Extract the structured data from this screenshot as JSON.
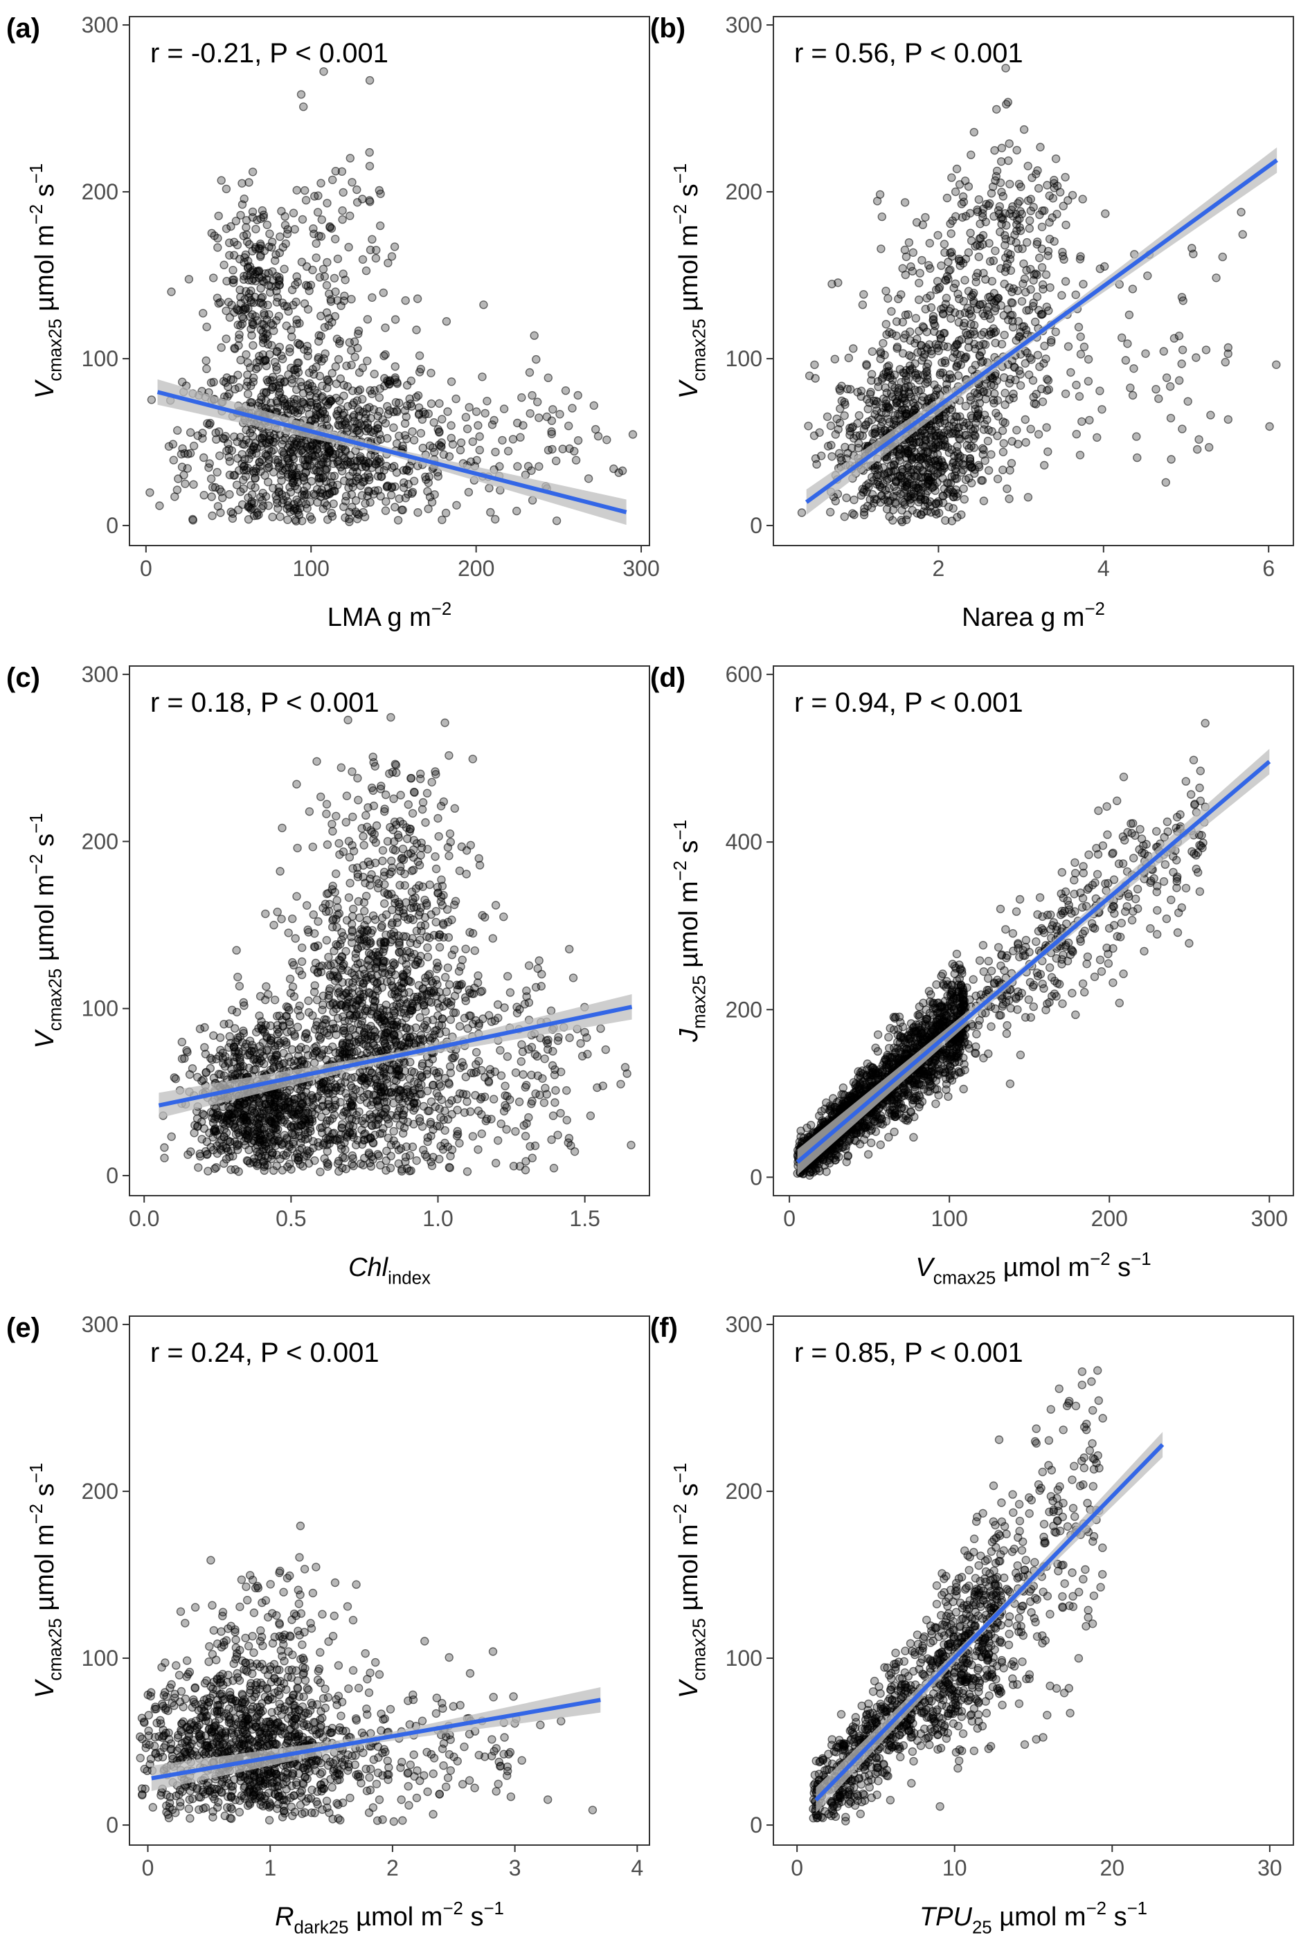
{
  "chart_data": [
    {
      "panel": "(a)",
      "type": "scatter",
      "annotation": "r = -0.21, P < 0.001",
      "xlabel": {
        "main": "LMA g m",
        "sup": "−2",
        "rest": ""
      },
      "ylabel": {
        "var": "V",
        "sub": "cmax25",
        "unit": " µmol m",
        "sup1": "−2",
        "mid": " s",
        "sup2": "−1"
      },
      "xlim": [
        -10,
        305
      ],
      "ylim": [
        -12,
        305
      ],
      "xticks": [
        0,
        100,
        200,
        300
      ],
      "yticks": [
        0,
        100,
        200,
        300
      ],
      "fit": {
        "x": [
          7,
          291
        ],
        "y": [
          80,
          8
        ]
      },
      "point_cloud": [
        {
          "cx": 95,
          "cy": 45,
          "sx": 35,
          "sy": 28,
          "n": 900
        },
        {
          "cx": 68,
          "cy": 135,
          "sx": 14,
          "sy": 32,
          "n": 260
        },
        {
          "cx": 115,
          "cy": 150,
          "sx": 18,
          "sy": 45,
          "n": 120
        },
        {
          "cx": 170,
          "cy": 45,
          "sx": 40,
          "sy": 30,
          "n": 180
        },
        {
          "cx": 245,
          "cy": 40,
          "sx": 30,
          "sy": 25,
          "n": 40
        }
      ]
    },
    {
      "panel": "(b)",
      "type": "scatter",
      "annotation": "r = 0.56, P < 0.001",
      "xlabel": {
        "main": "Narea g m",
        "sup": "−2",
        "rest": ""
      },
      "ylabel": {
        "var": "V",
        "sub": "cmax25",
        "unit": " µmol m",
        "sup1": "−2",
        "mid": " s",
        "sup2": "−1"
      },
      "xlim": [
        0,
        6.3
      ],
      "ylim": [
        -12,
        305
      ],
      "xticks": [
        2,
        4,
        6
      ],
      "yticks": [
        0,
        100,
        200,
        300
      ],
      "fit": {
        "x": [
          0.4,
          6.1
        ],
        "y": [
          14,
          219
        ]
      },
      "point_cloud": [
        {
          "cx": 1.6,
          "cy": 45,
          "sx": 0.45,
          "sy": 28,
          "n": 800
        },
        {
          "cx": 2.4,
          "cy": 110,
          "sx": 0.55,
          "sy": 40,
          "n": 500
        },
        {
          "cx": 3.0,
          "cy": 175,
          "sx": 0.45,
          "sy": 30,
          "n": 150
        },
        {
          "cx": 4.6,
          "cy": 110,
          "sx": 0.8,
          "sy": 40,
          "n": 60
        }
      ]
    },
    {
      "panel": "(c)",
      "type": "scatter",
      "annotation": "r = 0.18, P < 0.001",
      "xlabel": {
        "main": "Chl",
        "sub": "index",
        "italic": true
      },
      "ylabel": {
        "var": "V",
        "sub": "cmax25",
        "unit": " µmol m",
        "sup1": "−2",
        "mid": " s",
        "sup2": "−1"
      },
      "xlim": [
        -0.05,
        1.72
      ],
      "ylim": [
        -12,
        305
      ],
      "xticks": [
        0.0,
        0.5,
        1.0,
        1.5
      ],
      "xticklabels": [
        "0.0",
        "0.5",
        "1.0",
        "1.5"
      ],
      "yticks": [
        0,
        100,
        200,
        300
      ],
      "fit": {
        "x": [
          0.05,
          1.66
        ],
        "y": [
          42,
          101
        ]
      },
      "point_cloud": [
        {
          "cx": 0.4,
          "cy": 40,
          "sx": 0.12,
          "sy": 25,
          "n": 900
        },
        {
          "cx": 0.8,
          "cy": 75,
          "sx": 0.16,
          "sy": 50,
          "n": 1300
        },
        {
          "cx": 0.85,
          "cy": 190,
          "sx": 0.14,
          "sy": 35,
          "n": 200
        },
        {
          "cx": 1.25,
          "cy": 65,
          "sx": 0.15,
          "sy": 40,
          "n": 180
        }
      ]
    },
    {
      "panel": "(d)",
      "type": "scatter",
      "annotation": "r = 0.94, P < 0.001",
      "xlabel": {
        "var": "V",
        "sub": "cmax25",
        "unit": " µmol m",
        "sup1": "−2",
        "mid": " s",
        "sup2": "−1"
      },
      "ylabel": {
        "var": "J",
        "sub": "max25",
        "unit": " µmol m",
        "sup1": "−2",
        "mid": " s",
        "sup2": "−1"
      },
      "xlim": [
        -10,
        315
      ],
      "ylim": [
        -22,
        610
      ],
      "xticks": [
        0,
        100,
        200,
        300
      ],
      "yticks": [
        0,
        200,
        400,
        600
      ],
      "fit": {
        "x": [
          5,
          300
        ],
        "y": [
          18,
          496
        ]
      },
      "point_cloud": [
        {
          "line": true,
          "x0": 5,
          "x1": 110,
          "slope": 1.62,
          "b": 10,
          "noise": 22,
          "n": 1800
        },
        {
          "line": true,
          "x0": 100,
          "x1": 260,
          "slope": 1.62,
          "b": 10,
          "noise": 35,
          "n": 400
        }
      ]
    },
    {
      "panel": "(e)",
      "type": "scatter",
      "annotation": "r = 0.24, P < 0.001",
      "xlabel": {
        "var": "R",
        "sub": "dark25",
        "unit": " µmol m",
        "sup1": "−2",
        "mid": " s",
        "sup2": "−1"
      },
      "ylabel": {
        "var": "V",
        "sub": "cmax25",
        "unit": " µmol m",
        "sup1": "−2",
        "mid": " s",
        "sup2": "−1"
      },
      "xlim": [
        -0.15,
        4.1
      ],
      "ylim": [
        -12,
        305
      ],
      "xticks": [
        0,
        1,
        2,
        3,
        4
      ],
      "yticks": [
        0,
        100,
        200,
        300
      ],
      "fit": {
        "x": [
          0.03,
          3.7
        ],
        "y": [
          28,
          75
        ]
      },
      "point_cloud": [
        {
          "cx": 0.8,
          "cy": 45,
          "sx": 0.45,
          "sy": 25,
          "n": 1100
        },
        {
          "cx": 1.0,
          "cy": 110,
          "sx": 0.3,
          "sy": 25,
          "n": 120
        },
        {
          "cx": 2.2,
          "cy": 45,
          "sx": 0.6,
          "sy": 25,
          "n": 160
        }
      ]
    },
    {
      "panel": "(f)",
      "type": "scatter",
      "annotation": "r = 0.85, P < 0.001",
      "xlabel": {
        "var": "TPU",
        "sub": "25",
        "unit": " µmol m",
        "sup1": "−2",
        "mid": " s",
        "sup2": "−1"
      },
      "ylabel": {
        "var": "V",
        "sub": "cmax25",
        "unit": " µmol m",
        "sup1": "−2",
        "mid": " s",
        "sup2": "−1"
      },
      "xlim": [
        -1.5,
        31.5
      ],
      "ylim": [
        -12,
        305
      ],
      "xticks": [
        0,
        10,
        20,
        30
      ],
      "yticks": [
        0,
        100,
        200,
        300
      ],
      "fit": {
        "x": [
          1.2,
          23.2
        ],
        "y": [
          15,
          228
        ]
      },
      "point_cloud": [
        {
          "line": true,
          "x0": 1,
          "x1": 13,
          "slope": 9.7,
          "b": 3,
          "noise": 18,
          "n": 900
        },
        {
          "line": true,
          "x0": 9,
          "x1": 19.5,
          "slope": 9.7,
          "b": 3,
          "noise": 32,
          "n": 350
        }
      ]
    }
  ]
}
